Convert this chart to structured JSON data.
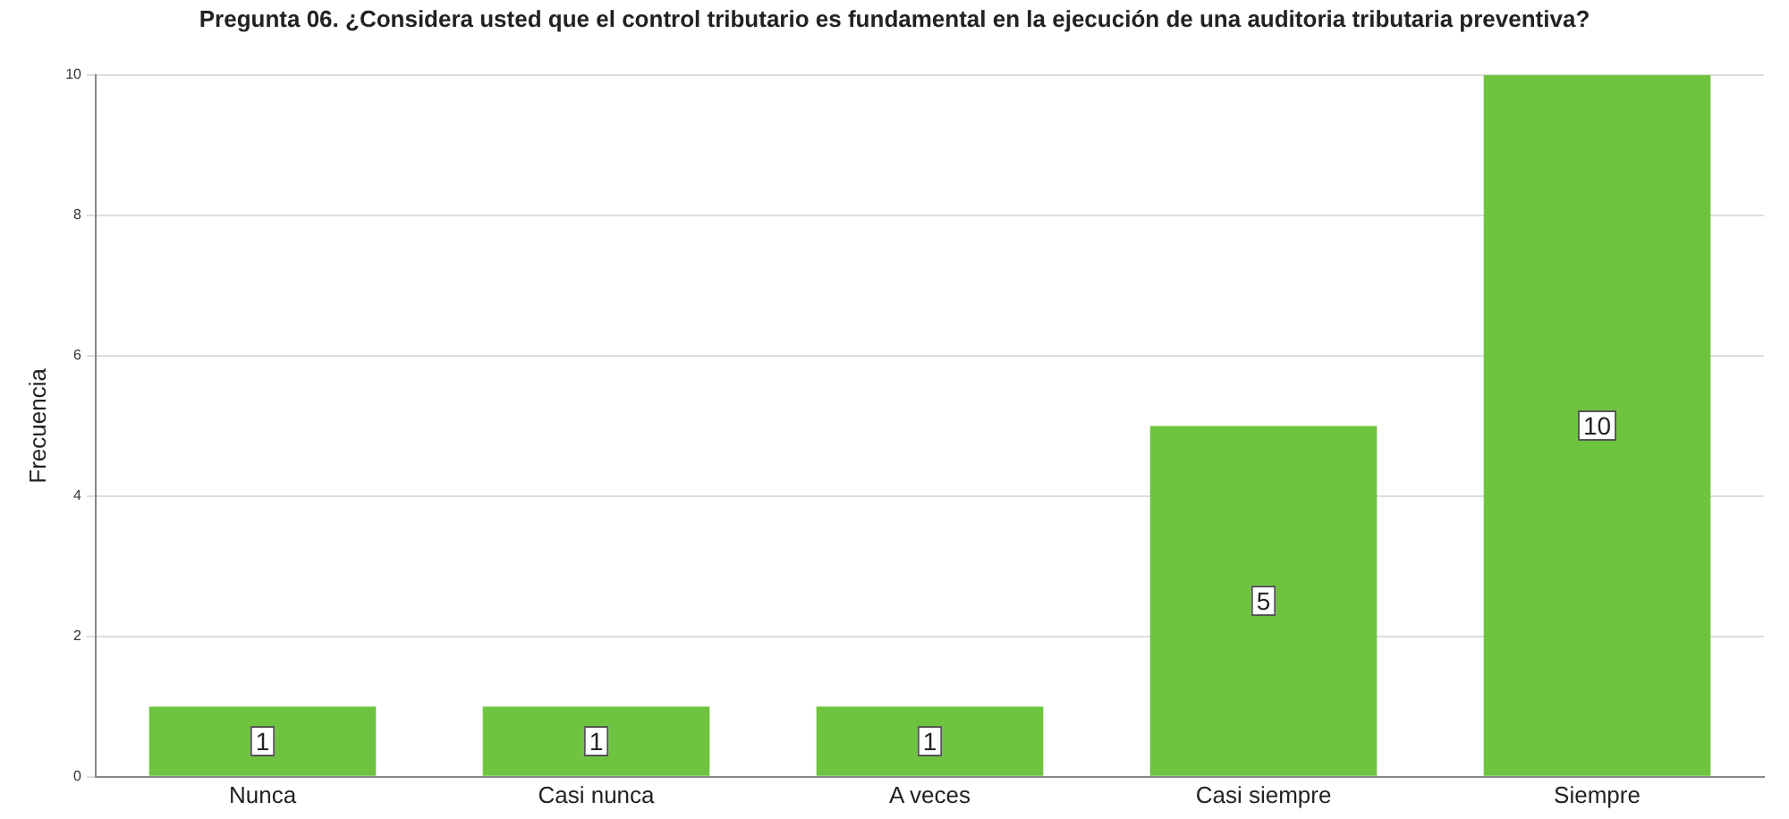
{
  "chart_data": {
    "type": "bar",
    "title": "Pregunta 06. ¿Considera usted que el control tributario es fundamental en la ejecución de una auditoria tributaria preventiva?",
    "ylabel": "Frecuencia",
    "categories": [
      "Nunca",
      "Casi nunca",
      "A veces",
      "Casi siempre",
      "Siempre"
    ],
    "values": [
      1,
      1,
      1,
      5,
      10
    ],
    "color": "#6fc43f",
    "ylim": [
      0,
      10
    ],
    "yticks": [
      0,
      2,
      4,
      6,
      8,
      10
    ],
    "grid": "y",
    "data_labels": true
  }
}
